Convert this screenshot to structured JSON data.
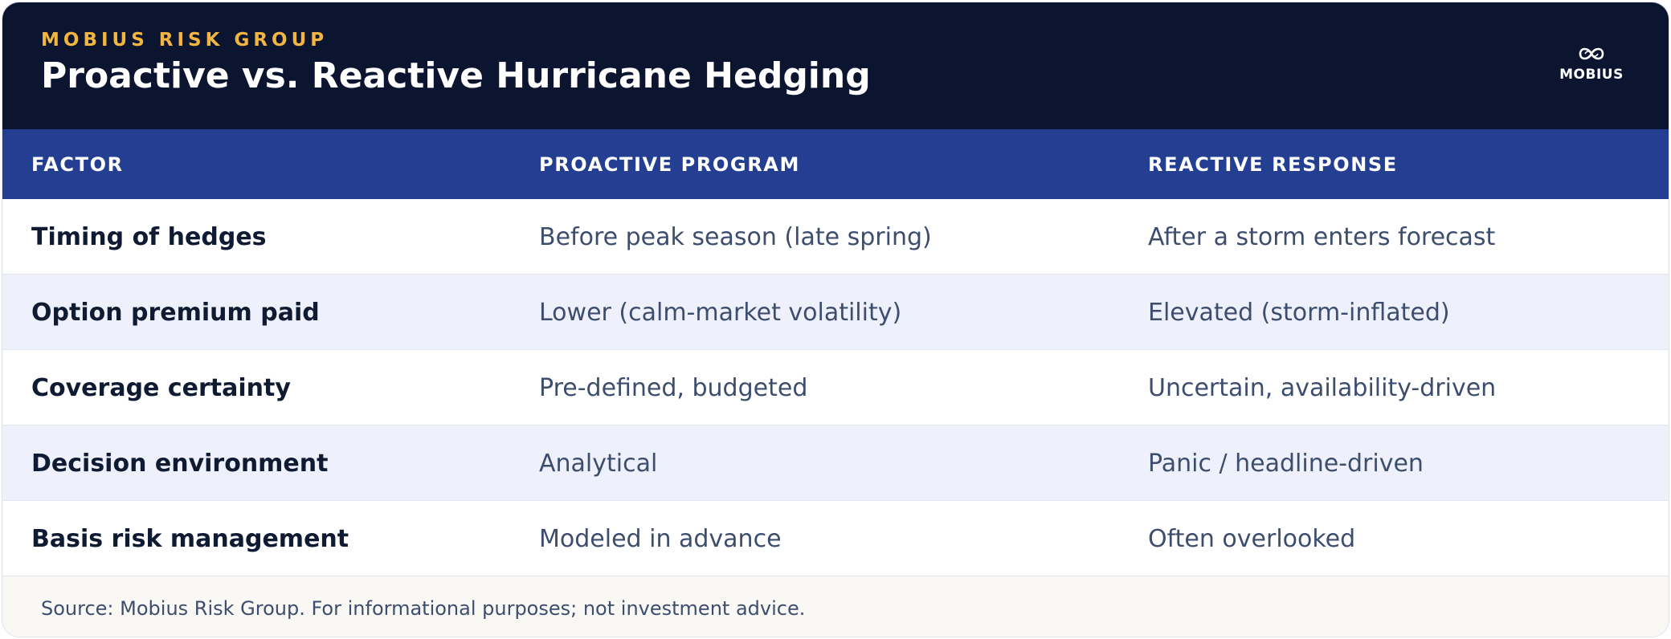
{
  "header": {
    "eyebrow": "MOBIUS RISK GROUP",
    "title": "Proactive vs. Reactive Hurricane Hedging",
    "logo_text": "MOBIUS",
    "logo_icon": "infinity-loop-logo-icon"
  },
  "table": {
    "columns": [
      "FACTOR",
      "PROACTIVE PROGRAM",
      "REACTIVE RESPONSE"
    ],
    "rows": [
      {
        "factor": "Timing of hedges",
        "proactive": "Before peak season (late spring)",
        "reactive": "After a storm enters forecast"
      },
      {
        "factor": "Option premium paid",
        "proactive": "Lower (calm-market volatility)",
        "reactive": "Elevated (storm-inflated)"
      },
      {
        "factor": "Coverage certainty",
        "proactive": "Pre-defined, budgeted",
        "reactive": "Uncertain, availability-driven"
      },
      {
        "factor": "Decision environment",
        "proactive": "Analytical",
        "reactive": "Panic / headline-driven"
      },
      {
        "factor": "Basis risk management",
        "proactive": "Modeled in advance",
        "reactive": "Often overlooked"
      }
    ]
  },
  "footer": {
    "source": "Source: Mobius Risk Group. For informational purposes; not investment advice."
  },
  "colors": {
    "header_bg": "#0c1530",
    "accent": "#f2b640",
    "table_header_bg": "#243f91",
    "stripe": "#eef1fb"
  }
}
